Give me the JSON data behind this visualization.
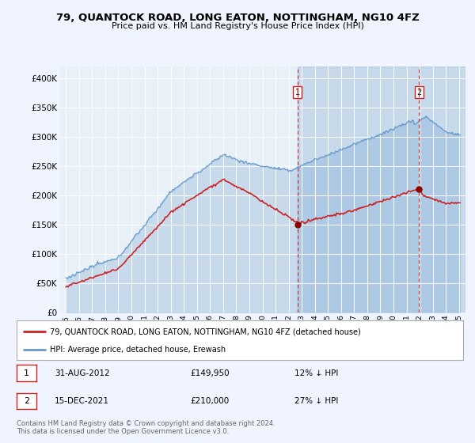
{
  "title": "79, QUANTOCK ROAD, LONG EATON, NOTTINGHAM, NG10 4FZ",
  "subtitle": "Price paid vs. HM Land Registry's House Price Index (HPI)",
  "background_color": "#f0f4ff",
  "plot_bg_color": "#e8f0f8",
  "fill_color": "#c8d8ee",
  "legend_line1": "79, QUANTOCK ROAD, LONG EATON, NOTTINGHAM, NG10 4FZ (detached house)",
  "legend_line2": "HPI: Average price, detached house, Erewash",
  "footnote": "Contains HM Land Registry data © Crown copyright and database right 2024.\nThis data is licensed under the Open Government Licence v3.0.",
  "annotation1": {
    "label": "1",
    "date_str": "31-AUG-2012",
    "price": "£149,950",
    "pct": "12% ↓ HPI",
    "x_year": 2012.67
  },
  "annotation2": {
    "label": "2",
    "date_str": "15-DEC-2021",
    "price": "£210,000",
    "pct": "27% ↓ HPI",
    "x_year": 2021.958
  },
  "hpi_color": "#6699cc",
  "price_color": "#cc2222",
  "vline_color": "#cc2222",
  "ylim": [
    0,
    420000
  ],
  "yticks": [
    0,
    50000,
    100000,
    150000,
    200000,
    250000,
    300000,
    350000,
    400000
  ],
  "ytick_labels": [
    "£0",
    "£50K",
    "£100K",
    "£150K",
    "£200K",
    "£250K",
    "£300K",
    "£350K",
    "£400K"
  ],
  "xlim_start": 1994.5,
  "xlim_end": 2025.5,
  "xticks": [
    1995,
    1996,
    1997,
    1998,
    1999,
    2000,
    2001,
    2002,
    2003,
    2004,
    2005,
    2006,
    2007,
    2008,
    2009,
    2010,
    2011,
    2012,
    2013,
    2014,
    2015,
    2016,
    2017,
    2018,
    2019,
    2020,
    2021,
    2022,
    2023,
    2024,
    2025
  ]
}
